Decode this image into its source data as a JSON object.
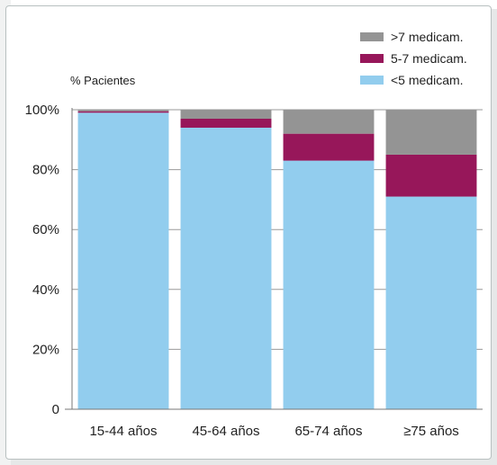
{
  "chart_data": {
    "type": "bar",
    "stacked": true,
    "categories": [
      "15-44 años",
      "45-64 años",
      "65-74 años",
      "≥75 años"
    ],
    "series": [
      {
        "name": "<5 medicam.",
        "color": "#92cdee",
        "values": [
          99,
          94,
          83,
          71
        ]
      },
      {
        "name": "5-7 medicam.",
        "color": "#97175a",
        "values": [
          0.5,
          3,
          9,
          14
        ]
      },
      {
        "name": ">7 medicam.",
        "color": "#949494",
        "values": [
          0.5,
          3,
          8,
          15
        ]
      }
    ],
    "legend_order": [
      ">7 medicam.",
      "5-7 medicam.",
      "<5 medicam."
    ],
    "ylabel": "% Pacientes",
    "ylim": [
      0,
      100
    ],
    "yticks": [
      "0",
      "20%",
      "40%",
      "60%",
      "80%",
      "100%"
    ],
    "grid": true,
    "legend_position": "top-right"
  }
}
